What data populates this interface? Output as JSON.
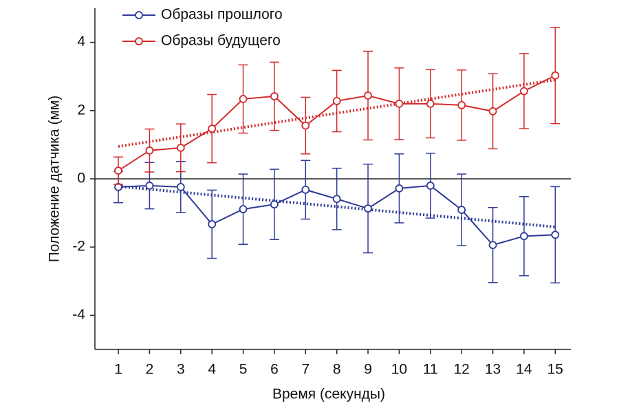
{
  "chart_data": {
    "type": "line",
    "xlabel": "Время (секунды)",
    "ylabel": "Положение датчика (мм)",
    "x": [
      1,
      2,
      3,
      4,
      5,
      6,
      7,
      8,
      9,
      10,
      11,
      12,
      13,
      14,
      15
    ],
    "xlim": [
      0.25,
      15.5
    ],
    "xticks": [
      1,
      2,
      3,
      4,
      5,
      6,
      7,
      8,
      9,
      10,
      11,
      12,
      13,
      14,
      15
    ],
    "ylim": [
      -5,
      5
    ],
    "yticks": [
      -4,
      -2,
      0,
      2,
      4
    ],
    "hline": 0,
    "legend": "upper left",
    "series": [
      {
        "name": "Образы прошлого",
        "color": "#2e3a97",
        "values": [
          -0.24,
          -0.2,
          -0.24,
          -1.33,
          -0.89,
          -0.75,
          -0.32,
          -0.59,
          -0.87,
          -0.28,
          -0.2,
          -0.91,
          -1.94,
          -1.68,
          -1.64
        ],
        "errors": [
          0.46,
          0.68,
          0.75,
          1.0,
          1.03,
          1.03,
          0.86,
          0.9,
          1.3,
          1.01,
          0.95,
          1.05,
          1.1,
          1.16,
          1.41
        ],
        "trend": {
          "x": [
            1,
            15
          ],
          "values": [
            -0.22,
            -1.41
          ]
        }
      },
      {
        "name": "Образы будущего",
        "color": "#d42a2a",
        "values": [
          0.24,
          0.83,
          0.91,
          1.47,
          2.34,
          2.42,
          1.56,
          2.28,
          2.44,
          2.2,
          2.2,
          2.16,
          1.98,
          2.57,
          3.03
        ],
        "errors": [
          0.4,
          0.63,
          0.7,
          1.0,
          1.0,
          1.0,
          0.83,
          0.9,
          1.3,
          1.05,
          1.0,
          1.03,
          1.1,
          1.1,
          1.41
        ],
        "trend": {
          "x": [
            1,
            15
          ],
          "values": [
            0.95,
            2.9
          ]
        }
      }
    ]
  }
}
